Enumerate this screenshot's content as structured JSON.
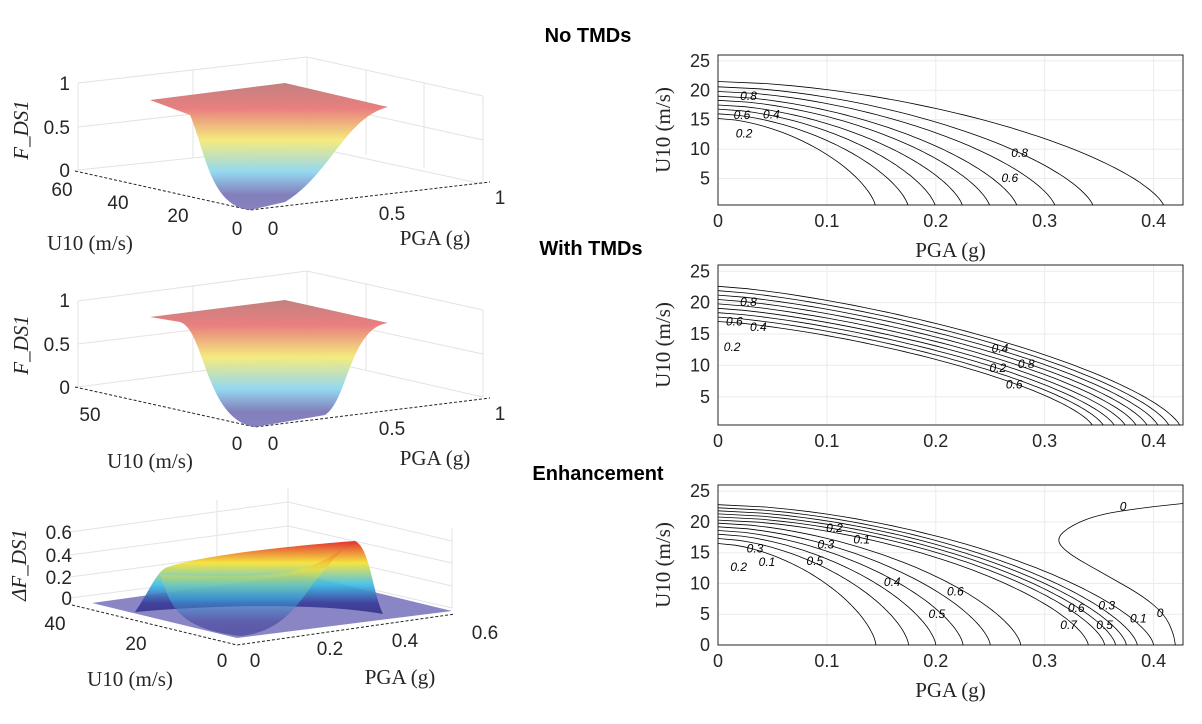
{
  "titles": {
    "no_tmds": "No TMDs",
    "with_tmds": "With TMDs",
    "enhancement": "Enhancement"
  },
  "chart_data": [
    {
      "type": "surface3d",
      "title": "No TMDs",
      "xlabel": "PGA (g)",
      "ylabel": "U10 (m/s)",
      "zlabel": "F_DS1",
      "xticks": [
        "0",
        "0.5",
        "1"
      ],
      "yticks": [
        "60",
        "40",
        "20",
        "0"
      ],
      "zticks": [
        "1",
        "0.5",
        "0"
      ],
      "xlim": [
        0,
        1
      ],
      "ylim": [
        0,
        60
      ],
      "zlim": [
        0,
        1
      ],
      "colormap": "rainbow"
    },
    {
      "type": "line",
      "subtype": "contour",
      "xlabel": "PGA (g)",
      "ylabel": "U10 (m/s)",
      "xlim": [
        0,
        0.427
      ],
      "ylim": [
        0.5,
        26
      ],
      "xticks": [
        "0",
        "0.1",
        "0.2",
        "0.3",
        "0.4"
      ],
      "yticks": [
        "5",
        "10",
        "15",
        "20",
        "25"
      ],
      "grid": true,
      "levels": [
        0.1,
        0.2,
        0.3,
        0.4,
        0.5,
        0.6,
        0.7,
        0.8,
        0.9
      ],
      "u10_at_pga0": [
        15.2,
        16.0,
        16.8,
        17.5,
        18.3,
        19.0,
        19.8,
        20.6,
        21.5
      ],
      "pga_at_u0": [
        0.145,
        0.175,
        0.2,
        0.225,
        0.25,
        0.275,
        0.31,
        0.345,
        0.41
      ],
      "labels": [
        {
          "text": "0.8",
          "x": 0.028,
          "y": 19.1
        },
        {
          "text": "0.6",
          "x": 0.022,
          "y": 18.3
        },
        {
          "text": "0.4",
          "x": 0.038,
          "y": 16.0
        },
        {
          "text": "0.2",
          "x": 0.035,
          "y": 15.1
        },
        {
          "text": "0.8",
          "x": 0.277,
          "y": 9.4
        },
        {
          "text": "0.6",
          "x": 0.268,
          "y": 5.2
        }
      ]
    },
    {
      "type": "surface3d",
      "title": "With TMDs",
      "xlabel": "PGA (g)",
      "ylabel": "U10 (m/s)",
      "zlabel": "F_DS1",
      "xticks": [
        "0",
        "0.5",
        "1"
      ],
      "yticks": [
        "50",
        "0"
      ],
      "zticks": [
        "1",
        "0.5",
        "0"
      ],
      "xlim": [
        0,
        1
      ],
      "ylim": [
        0,
        60
      ],
      "zlim": [
        0,
        1
      ],
      "colormap": "rainbow"
    },
    {
      "type": "line",
      "subtype": "contour",
      "xlabel": "",
      "ylabel": "U10 (m/s)",
      "xlim": [
        0,
        0.427
      ],
      "ylim": [
        0.5,
        26
      ],
      "xticks": [
        "0",
        "0.1",
        "0.2",
        "0.3",
        "0.4"
      ],
      "yticks": [
        "5",
        "10",
        "15",
        "20",
        "25"
      ],
      "grid": true,
      "levels": [
        0.1,
        0.2,
        0.3,
        0.4,
        0.5,
        0.6,
        0.7,
        0.8,
        0.9
      ],
      "u10_at_pga0": [
        17.0,
        17.7,
        18.4,
        19.1,
        19.8,
        20.5,
        21.2,
        21.9,
        22.6
      ],
      "pga_at_u0": [
        0.345,
        0.355,
        0.365,
        0.375,
        0.385,
        0.395,
        0.405,
        0.415,
        0.425
      ],
      "labels": [
        {
          "text": "0.8",
          "x": 0.028,
          "y": 20.2
        },
        {
          "text": "0.6",
          "x": 0.026,
          "y": 19.3
        },
        {
          "text": "0.4",
          "x": 0.026,
          "y": 18.4
        },
        {
          "text": "0.2",
          "x": 0.024,
          "y": 17.5
        },
        {
          "text": "0.8",
          "x": 0.283,
          "y": 10.3
        },
        {
          "text": "0.6",
          "x": 0.283,
          "y": 9.3
        },
        {
          "text": "0.4",
          "x": 0.281,
          "y": 8.3
        },
        {
          "text": "0.2",
          "x": 0.279,
          "y": 7.4
        }
      ]
    },
    {
      "type": "surface3d",
      "title": "Enhancement",
      "xlabel": "PGA (g)",
      "ylabel": "U10 (m/s)",
      "zlabel": "ΔF_DS1",
      "xticks": [
        "0",
        "0.2",
        "0.4",
        "0.6"
      ],
      "yticks": [
        "40",
        "20",
        "0"
      ],
      "zticks": [
        "0.6",
        "0.4",
        "0.2",
        "0"
      ],
      "xlim": [
        0,
        0.6
      ],
      "ylim": [
        0,
        40
      ],
      "zlim": [
        0,
        0.6
      ],
      "colormap": "rainbow"
    },
    {
      "type": "line",
      "subtype": "contour",
      "xlabel": "PGA (g)",
      "ylabel": "U10 (m/s)",
      "xlim": [
        0,
        0.427
      ],
      "ylim": [
        0,
        26
      ],
      "xticks": [
        "0",
        "0.1",
        "0.2",
        "0.3",
        "0.4"
      ],
      "yticks": [
        "0",
        "5",
        "10",
        "15",
        "20",
        "25"
      ],
      "grid": true,
      "u10_at_pga0": [
        16.5,
        17.3,
        18.0,
        18.6,
        19.2,
        19.8,
        20.3,
        20.8,
        21.3,
        21.8,
        22.3,
        22.8
      ],
      "pga_at_u0": [
        0.145,
        0.175,
        0.2,
        0.225,
        0.25,
        0.278,
        0.34,
        0.355,
        0.365,
        0.375,
        0.385,
        0.4
      ],
      "zero_contour": [
        [
          0.427,
          23.0
        ],
        [
          0.39,
          22.3
        ],
        [
          0.35,
          21.2
        ],
        [
          0.325,
          19.5
        ],
        [
          0.31,
          17.3
        ],
        [
          0.32,
          15.0
        ],
        [
          0.355,
          11.5
        ],
        [
          0.39,
          8.0
        ],
        [
          0.41,
          5.0
        ],
        [
          0.418,
          2.0
        ],
        [
          0.42,
          0
        ]
      ],
      "labels": [
        {
          "text": "0",
          "x": 0.372,
          "y": 22.6
        },
        {
          "text": "0",
          "x": 0.406,
          "y": 5.3
        },
        {
          "text": "0.1",
          "x": 0.132,
          "y": 17.2
        },
        {
          "text": "0.2",
          "x": 0.118,
          "y": 16.8
        },
        {
          "text": "0.3",
          "x": 0.11,
          "y": 16.4
        },
        {
          "text": "0.5",
          "x": 0.1,
          "y": 16.0
        },
        {
          "text": "0.4",
          "x": 0.16,
          "y": 10.3
        },
        {
          "text": "0.6",
          "x": 0.218,
          "y": 8.8
        },
        {
          "text": "0.5",
          "x": 0.212,
          "y": 7.4
        },
        {
          "text": "0.3",
          "x": 0.034,
          "y": 15.8
        },
        {
          "text": "0.2",
          "x": 0.03,
          "y": 15.0
        },
        {
          "text": "0.1",
          "x": 0.034,
          "y": 13.6
        },
        {
          "text": "0.7",
          "x": 0.322,
          "y": 3.3
        },
        {
          "text": "0.6",
          "x": 0.34,
          "y": 3.8
        },
        {
          "text": "0.5",
          "x": 0.355,
          "y": 3.3
        },
        {
          "text": "0.3",
          "x": 0.368,
          "y": 4.2
        },
        {
          "text": "0.1",
          "x": 0.386,
          "y": 4.4
        }
      ]
    }
  ]
}
